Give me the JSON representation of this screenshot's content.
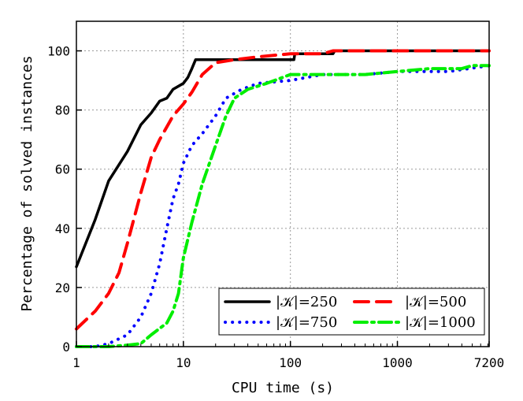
{
  "chart_data": {
    "type": "line",
    "xlabel": "CPU time (s)",
    "ylabel": "Percentage of solved instances",
    "x_scale": "log",
    "xlim": [
      1,
      7200
    ],
    "ylim": [
      0,
      110
    ],
    "x_ticks": [
      1,
      10,
      100,
      1000,
      7200
    ],
    "x_tick_labels": [
      "1",
      "10",
      "100",
      "1000",
      "7200"
    ],
    "y_ticks": [
      0,
      20,
      40,
      60,
      80,
      100
    ],
    "y_tick_labels": [
      "0",
      "20",
      "40",
      "60",
      "80",
      "100"
    ],
    "grid": true,
    "legend_position": "bottom-right",
    "series": [
      {
        "name": "|𝒦|=250",
        "color": "#000000",
        "style": "solid",
        "points": [
          [
            1,
            27
          ],
          [
            1.5,
            43
          ],
          [
            2,
            56
          ],
          [
            3,
            66
          ],
          [
            4,
            75
          ],
          [
            5,
            79
          ],
          [
            6,
            83
          ],
          [
            7,
            84
          ],
          [
            8,
            87
          ],
          [
            10,
            89
          ],
          [
            11,
            91
          ],
          [
            12,
            94
          ],
          [
            13,
            97
          ],
          [
            20,
            97
          ],
          [
            50,
            97
          ],
          [
            108,
            97
          ],
          [
            110,
            99
          ],
          [
            250,
            99
          ],
          [
            260,
            100
          ],
          [
            7200,
            100
          ]
        ]
      },
      {
        "name": "|𝒦|=500",
        "color": "#ff0000",
        "style": "dashed",
        "points": [
          [
            1,
            6
          ],
          [
            1.5,
            12
          ],
          [
            2,
            18
          ],
          [
            2.5,
            25
          ],
          [
            3,
            35
          ],
          [
            4,
            52
          ],
          [
            5,
            64
          ],
          [
            6,
            70
          ],
          [
            8,
            78
          ],
          [
            10,
            82
          ],
          [
            12,
            86
          ],
          [
            15,
            92
          ],
          [
            20,
            96
          ],
          [
            30,
            97
          ],
          [
            50,
            98
          ],
          [
            100,
            99
          ],
          [
            200,
            99
          ],
          [
            250,
            100
          ],
          [
            7200,
            100
          ]
        ]
      },
      {
        "name": "|𝒦|=750",
        "color": "#0000ff",
        "style": "dotted",
        "points": [
          [
            1,
            0
          ],
          [
            1.5,
            0
          ],
          [
            2,
            1
          ],
          [
            3,
            4
          ],
          [
            4,
            10
          ],
          [
            5,
            18
          ],
          [
            6,
            28
          ],
          [
            7,
            40
          ],
          [
            8,
            50
          ],
          [
            9,
            55
          ],
          [
            10,
            62
          ],
          [
            12,
            68
          ],
          [
            15,
            72
          ],
          [
            20,
            78
          ],
          [
            25,
            84
          ],
          [
            35,
            87
          ],
          [
            50,
            89
          ],
          [
            100,
            90
          ],
          [
            200,
            92
          ],
          [
            500,
            92
          ],
          [
            1000,
            93
          ],
          [
            3000,
            93
          ],
          [
            7200,
            95
          ]
        ]
      },
      {
        "name": "|𝒦|=1000",
        "color": "#00ee00",
        "style": "dashdot",
        "points": [
          [
            1,
            0
          ],
          [
            2,
            0
          ],
          [
            3,
            0.5
          ],
          [
            4,
            1
          ],
          [
            5,
            4
          ],
          [
            7,
            8
          ],
          [
            8,
            12
          ],
          [
            9,
            18
          ],
          [
            10,
            30
          ],
          [
            12,
            42
          ],
          [
            15,
            55
          ],
          [
            20,
            68
          ],
          [
            25,
            78
          ],
          [
            30,
            84
          ],
          [
            40,
            87
          ],
          [
            60,
            89
          ],
          [
            100,
            92
          ],
          [
            200,
            92
          ],
          [
            500,
            92
          ],
          [
            1000,
            93
          ],
          [
            2000,
            94
          ],
          [
            4000,
            94
          ],
          [
            5000,
            95
          ],
          [
            7200,
            95
          ]
        ]
      }
    ]
  }
}
